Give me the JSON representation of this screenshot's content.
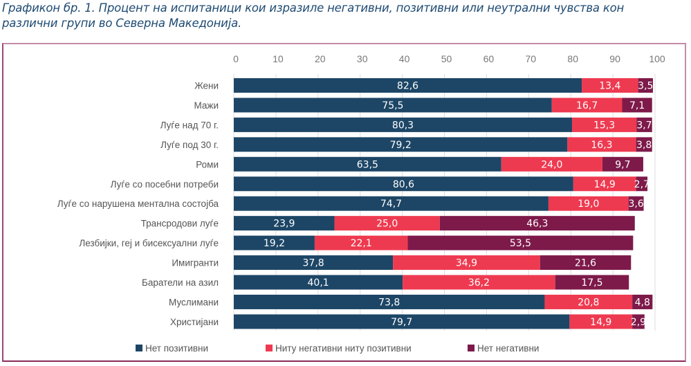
{
  "title": {
    "line1": "Графикон бр. 1. Процент на испитаници кои изразиле негативни, позитивни или неутрални чувства кон",
    "line2": "различни групи во Северна Македонија."
  },
  "colors": {
    "series": [
      "#1d4666",
      "#ee3a50",
      "#7d1a4a"
    ],
    "title": "#1e4a72",
    "frame": "#9b4876"
  },
  "chart_data": {
    "type": "bar",
    "orientation": "horizontal",
    "stacked": true,
    "title": "Графикон бр. 1. Процент на испитаници кои изразиле негативни, позитивни или неутрални чувства кон различни групи во Северна Македонија.",
    "xlabel": "",
    "ylabel": "",
    "xlim": [
      0,
      100
    ],
    "xticks": [
      0,
      10,
      20,
      30,
      40,
      50,
      60,
      70,
      80,
      90,
      100
    ],
    "grid": true,
    "legend_position": "bottom",
    "decimal_separator": ",",
    "categories": [
      "Жени",
      "Мажи",
      "Луѓе над 70 г.",
      "Луѓе под 30 г.",
      "Роми",
      "Луѓе со посебни потреби",
      "Луѓе со нарушена ментална состојба",
      "Трансродови луѓе",
      "Лезбијки, геј и бисексуални луѓе",
      "Имигранти",
      "Баратели на азил",
      "Муслимани",
      "Христијани"
    ],
    "series": [
      {
        "name": "Нет позитивни",
        "values": [
          82.6,
          75.5,
          80.3,
          79.2,
          63.5,
          80.6,
          74.7,
          23.9,
          19.2,
          37.8,
          40.1,
          73.8,
          79.7
        ]
      },
      {
        "name": "Ниту негативни ниту позитивни",
        "values": [
          13.4,
          16.7,
          15.3,
          16.3,
          24.0,
          14.9,
          19.0,
          25.0,
          22.1,
          34.9,
          36.2,
          20.8,
          14.9
        ]
      },
      {
        "name": "Нет негативни",
        "values": [
          3.5,
          7.1,
          3.7,
          3.8,
          9.7,
          2.7,
          3.6,
          46.3,
          53.5,
          21.6,
          17.5,
          4.8,
          2.9
        ]
      }
    ]
  }
}
